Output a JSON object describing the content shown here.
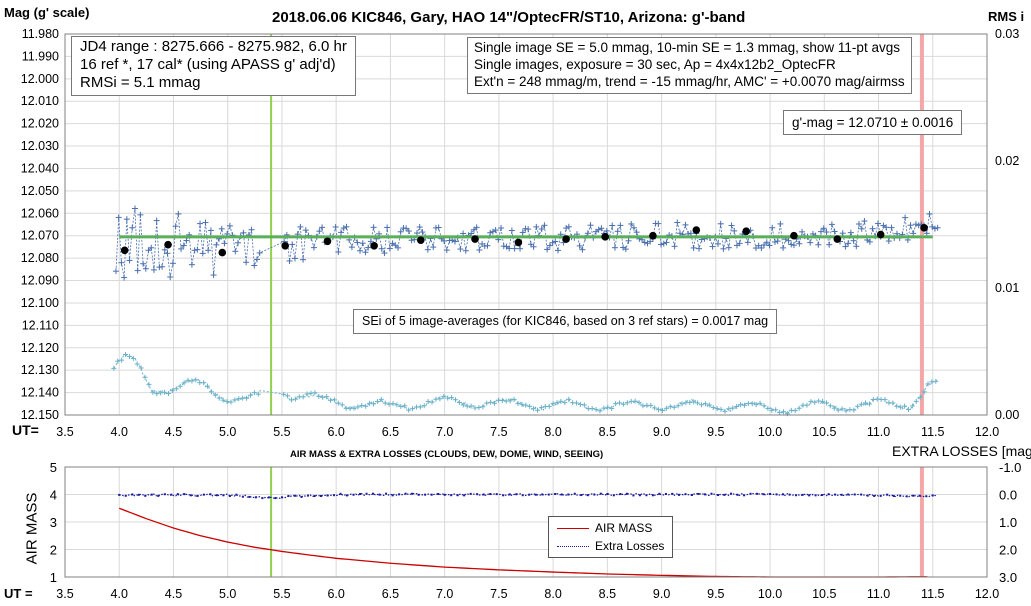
{
  "title": "2018.06.06  KIC846,  Gary, HAO 14\"/OptecFR/ST10,  Arizona:  g'-band",
  "upper_left_label": "Mag (g' scale)",
  "upper_right_label": "RMS i",
  "ut_label": "UT=",
  "lower_ut_label": "UT =",
  "lower_title": "AIR MASS & EXTRA LOSSES (CLOUDS, DEW, DOME, WIND, SEEING)",
  "lower_right_title": "EXTRA LOSSES [mag]",
  "lower_left_label": "AIR MASS",
  "box1": {
    "lines": [
      "JD4 range : 8275.666 - 8275.982,  6.0  hr",
      "16 ref *, 17 cal* (using APASS g' adj'd)",
      "RMSi = 5.1 mmag"
    ]
  },
  "box2": {
    "lines": [
      "Single image SE = 5.0 mmag, 10-min SE = 1.3 mmag, show  11-pt avgs",
      "Single images, exposure = 30 sec, Ap = 4x4x12b2_OptecFR",
      "Ext'n = 248 mmag/m, trend =  -15 mmag/hr, AMC' = +0.0070 mag/airmss"
    ]
  },
  "gmag_box": "g'-mag = 12.0710 ± 0.0016",
  "sei_box": "SEi of 5 image-averages (for KIC846, based on 3 ref stars) = 0.0017 mag",
  "legend": {
    "airmass": "AIR MASS",
    "extra": "Extra Losses"
  },
  "colors": {
    "mag_points": "#4a6fae",
    "avg_points": "#000000",
    "fit_line": "#5aaf5a",
    "rms_points": "#6bb1c9",
    "ut_marker": "#92d050",
    "pink_marker": "#f4a7a7",
    "airmass": "#cc0000",
    "extra": "#1a1aa0",
    "grid": "#d9d9d9"
  },
  "chart_data": [
    {
      "type": "scatter",
      "x_axis": {
        "label": "UT=",
        "range": [
          3.5,
          12.0
        ],
        "ticks": [
          "3.5",
          "4.0",
          "4.5",
          "5.0",
          "5.5",
          "6.0",
          "6.5",
          "7.0",
          "7.5",
          "8.0",
          "8.5",
          "9.0",
          "9.5",
          "10.0",
          "10.5",
          "11.0",
          "11.5",
          "12.0"
        ]
      },
      "y_left": {
        "label": "Mag (g' scale)",
        "range": [
          11.98,
          12.15
        ],
        "inverted": true,
        "ticks": [
          "11.980",
          "11.990",
          "12.000",
          "12.010",
          "12.020",
          "12.030",
          "12.040",
          "12.050",
          "12.060",
          "12.070",
          "12.080",
          "12.090",
          "12.100",
          "12.110",
          "12.120",
          "12.130",
          "12.140",
          "12.150"
        ]
      },
      "y_right": {
        "label": "RMS i",
        "range": [
          0.0,
          0.03
        ],
        "ticks": [
          "0.00",
          "0.01",
          "0.02",
          "0.03"
        ]
      },
      "grid": true,
      "fit_line": {
        "x": [
          4.0,
          11.5
        ],
        "y": [
          12.0705,
          12.0705
        ]
      },
      "avg_points": {
        "x": [
          4.05,
          4.45,
          4.95,
          5.53,
          5.92,
          6.35,
          6.78,
          7.28,
          7.68,
          8.12,
          8.48,
          8.92,
          9.32,
          9.78,
          10.22,
          10.62,
          11.02,
          11.42
        ],
        "y": [
          12.0765,
          12.074,
          12.0775,
          12.0745,
          12.0725,
          12.0745,
          12.072,
          12.0715,
          12.073,
          12.0715,
          12.0705,
          12.07,
          12.0675,
          12.068,
          12.07,
          12.0715,
          12.0695,
          12.0665
        ]
      },
      "mag_trace": {
        "x": [
          4.0,
          4.5,
          5.0,
          5.3,
          5.5,
          6.0,
          7.0,
          8.0,
          9.0,
          10.0,
          11.0,
          11.5
        ],
        "y": [
          12.073,
          12.074,
          12.076,
          12.074,
          12.073,
          12.072,
          12.071,
          12.071,
          12.07,
          12.07,
          12.069,
          12.066
        ],
        "scatter_amplitude": [
          0.018,
          0.015,
          0.012,
          0.01,
          0.009,
          0.007,
          0.006,
          0.006,
          0.006,
          0.006,
          0.006,
          0.006
        ]
      },
      "rms_trace": {
        "x": [
          3.95,
          4.05,
          4.15,
          4.3,
          4.5,
          4.7,
          5.0,
          5.2,
          5.5,
          6.0,
          6.5,
          7.0,
          7.5,
          8.0,
          8.5,
          9.0,
          9.5,
          10.0,
          10.5,
          11.0,
          11.3,
          11.45,
          11.55
        ],
        "y": [
          0.004,
          0.0045,
          0.004,
          0.002,
          0.0022,
          0.0025,
          0.0014,
          0.0013,
          0.0018,
          0.001,
          0.0007,
          0.0011,
          0.0009,
          0.0008,
          0.0007,
          0.0008,
          0.0007,
          0.0005,
          0.0007,
          0.0008,
          0.0009,
          0.0022,
          0.0025
        ]
      },
      "vertical_markers": [
        5.4,
        11.4
      ]
    },
    {
      "type": "line",
      "x_axis": {
        "label": "UT =",
        "range": [
          3.5,
          12.0
        ],
        "ticks": [
          "3.5",
          "4.0",
          "4.5",
          "5.0",
          "5.5",
          "6.0",
          "6.5",
          "7.0",
          "7.5",
          "8.0",
          "8.5",
          "9.0",
          "9.5",
          "10.0",
          "10.5",
          "11.0",
          "11.5",
          "12.0"
        ]
      },
      "y_left": {
        "label": "AIR MASS",
        "range": [
          1,
          5
        ],
        "ticks": [
          "1",
          "2",
          "3",
          "4",
          "5"
        ]
      },
      "y_right": {
        "label": "EXTRA LOSSES [mag]",
        "range": [
          -1.0,
          3.0
        ],
        "inverted": true,
        "ticks": [
          "-1.0",
          "0.0",
          "1.0",
          "2.0",
          "3.0"
        ]
      },
      "series": [
        {
          "name": "AIR MASS",
          "x": [
            4.0,
            4.25,
            4.5,
            4.75,
            5.0,
            5.25,
            5.5,
            5.75,
            6.0,
            6.5,
            7.0,
            7.5,
            8.0,
            8.5,
            9.0,
            9.5,
            10.0,
            10.5,
            11.0,
            11.5
          ],
          "y": [
            3.5,
            3.12,
            2.78,
            2.5,
            2.27,
            2.08,
            1.93,
            1.8,
            1.68,
            1.5,
            1.36,
            1.26,
            1.18,
            1.11,
            1.06,
            1.02,
            1.0,
            1.0,
            1.0,
            1.01
          ]
        },
        {
          "name": "Extra Losses",
          "x": [
            4.0,
            5.0,
            5.4,
            6.0,
            7.0,
            8.0,
            9.0,
            10.0,
            11.0,
            11.4,
            11.55
          ],
          "y": [
            0.02,
            0.02,
            0.12,
            0.0,
            0.0,
            0.0,
            0.0,
            0.0,
            0.03,
            0.08,
            0.05
          ]
        }
      ],
      "vertical_markers": [
        5.4,
        11.4
      ]
    }
  ]
}
